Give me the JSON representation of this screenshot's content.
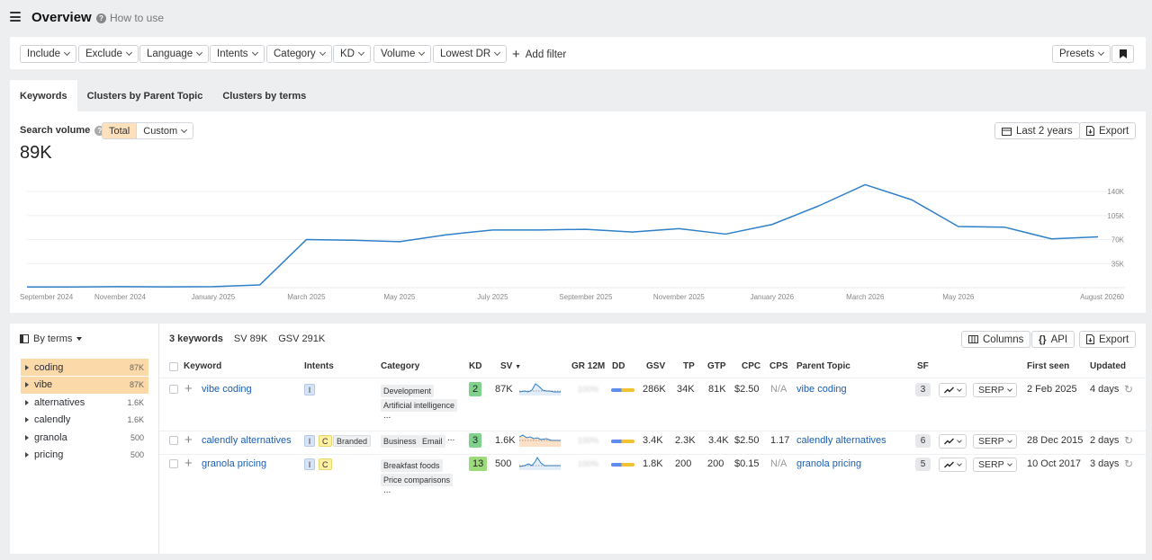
{
  "header": {
    "title": "Overview",
    "how_to_use": "How to use"
  },
  "filters": {
    "include": "Include",
    "exclude": "Exclude",
    "language": "Language",
    "intents": "Intents",
    "category": "Category",
    "kd": "KD",
    "volume": "Volume",
    "lowest_dr": "Lowest DR",
    "add_filter": "Add filter",
    "presets": "Presets"
  },
  "tabs": {
    "keywords": "Keywords",
    "parent_topic": "Clusters by Parent Topic",
    "terms": "Clusters by terms"
  },
  "search_volume": {
    "label": "Search volume",
    "total": "Total",
    "custom": "Custom",
    "value": "89K",
    "period": "Last 2 years",
    "export": "Export"
  },
  "chart_data": {
    "type": "line",
    "x": [
      "2024-09",
      "2024-10",
      "2024-11",
      "2024-12",
      "2025-01",
      "2025-02",
      "2025-03",
      "2025-04",
      "2025-05",
      "2025-06",
      "2025-07",
      "2025-08",
      "2025-09",
      "2025-10",
      "2025-11",
      "2025-12",
      "2026-01",
      "2026-02",
      "2026-03",
      "2026-04",
      "2026-05",
      "2026-06",
      "2026-07",
      "2026-08"
    ],
    "values": [
      1000,
      1000,
      1500,
      1200,
      1500,
      4000,
      70000,
      69000,
      67000,
      77000,
      84000,
      84000,
      85000,
      81000,
      86000,
      78000,
      92000,
      119000,
      150000,
      128000,
      89000,
      88000,
      71000,
      74000
    ],
    "x_tick_labels": [
      "September 2024",
      "November 2024",
      "January 2025",
      "March 2025",
      "May 2025",
      "July 2025",
      "September 2025",
      "November 2025",
      "January 2026",
      "March 2026",
      "May 2026",
      "August 2026"
    ],
    "y_ticks": [
      0,
      35000,
      70000,
      105000,
      140000
    ],
    "y_tick_labels": [
      "0",
      "35K",
      "70K",
      "105K",
      "140K"
    ],
    "ylim": [
      0,
      165000
    ],
    "y_axis_position": "right",
    "grid": true,
    "color": "#2f80c8"
  },
  "sidebar": {
    "by_terms": "By terms",
    "terms": [
      {
        "label": "coding",
        "count": "87K",
        "highlighted": true
      },
      {
        "label": "vibe",
        "count": "87K",
        "highlighted": true
      },
      {
        "label": "alternatives",
        "count": "1.6K",
        "highlighted": false
      },
      {
        "label": "calendly",
        "count": "1.6K",
        "highlighted": false
      },
      {
        "label": "granola",
        "count": "500",
        "highlighted": false
      },
      {
        "label": "pricing",
        "count": "500",
        "highlighted": false
      }
    ]
  },
  "table": {
    "count": "3 keywords",
    "sv_total": "SV 89K",
    "gsv_total": "GSV 291K",
    "columns_btn": "Columns",
    "api_btn": "API",
    "export_btn": "Export",
    "headers": {
      "keyword": "Keyword",
      "intents": "Intents",
      "category": "Category",
      "kd": "KD",
      "sv": "SV",
      "gr": "GR 12M",
      "dd": "DD",
      "gsv": "GSV",
      "tp": "TP",
      "gtp": "GTP",
      "cpc": "CPC",
      "cps": "CPS",
      "parent": "Parent Topic",
      "sf": "SF",
      "first_seen": "First seen",
      "updated": "Updated"
    },
    "serp_label": "SERP",
    "rows": [
      {
        "keyword": "vibe coding",
        "intents": [
          "I"
        ],
        "categories": [
          "Development",
          "Artificial intelligence",
          "..."
        ],
        "kd": "2",
        "kd_color": "#7fd18b",
        "sv": "87K",
        "gr": "100%",
        "gsv": "286K",
        "tp": "34K",
        "gtp": "81K",
        "cpc": "$2.50",
        "cps": "N/A",
        "parent": "vibe coding",
        "sf": "3",
        "first_seen": "2 Feb 2025",
        "updated": "4 days"
      },
      {
        "keyword": "calendly alternatives",
        "intents": [
          "I",
          "C",
          "Branded"
        ],
        "categories": [
          "Business",
          "Email",
          "..."
        ],
        "kd": "3",
        "kd_color": "#7fd18b",
        "sv": "1.6K",
        "gr": "100%",
        "gsv": "3.4K",
        "tp": "2.3K",
        "gtp": "3.4K",
        "cpc": "$2.50",
        "cps": "1.17",
        "parent": "calendly alternatives",
        "sf": "6",
        "first_seen": "28 Dec 2015",
        "updated": "2 days"
      },
      {
        "keyword": "granola pricing",
        "intents": [
          "I",
          "C"
        ],
        "categories": [
          "Breakfast foods",
          "Price comparisons",
          "..."
        ],
        "kd": "13",
        "kd_color": "#9bdb7a",
        "sv": "500",
        "gr": "100%",
        "gsv": "1.8K",
        "tp": "200",
        "gtp": "200",
        "cpc": "$0.15",
        "cps": "N/A",
        "parent": "granola pricing",
        "sf": "5",
        "first_seen": "10 Oct 2017",
        "updated": "3 days"
      }
    ]
  }
}
